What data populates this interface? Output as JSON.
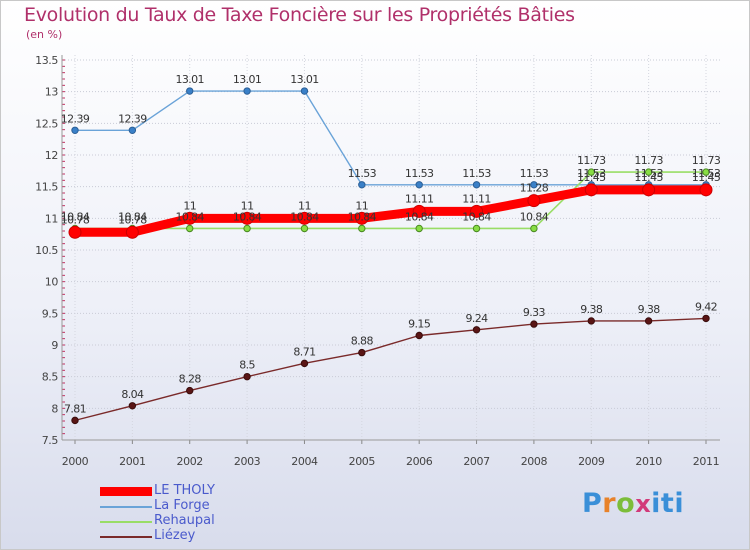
{
  "header": {
    "title": "Evolution du Taux de Taxe Foncière sur les Propriétés Bâties",
    "unit": "(en %)"
  },
  "logo": {
    "text": "Proxiti"
  },
  "chart_data": {
    "type": "line",
    "title": "Evolution du Taux de Taxe Foncière sur les Propriétés Bâties",
    "ylabel": "(en %)",
    "xlabel": "",
    "ylim": [
      7.5,
      13.5
    ],
    "yticks": [
      "7.5",
      "8",
      "8.5",
      "9",
      "9.5",
      "10",
      "10.5",
      "11",
      "11.5",
      "12",
      "12.5",
      "13",
      "13.5"
    ],
    "categories": [
      "2000",
      "2001",
      "2002",
      "2003",
      "2004",
      "2005",
      "2006",
      "2007",
      "2008",
      "2009",
      "2010",
      "2011"
    ],
    "legend_position": "bottom-left",
    "series": [
      {
        "name": "LE THOLY",
        "color": "#ff0000",
        "values": [
          10.78,
          10.78,
          11,
          11,
          11,
          11,
          11.11,
          11.11,
          11.28,
          11.45,
          11.45,
          11.45
        ],
        "labels": [
          "10.78",
          "10.78",
          "11",
          "11",
          "11",
          "11",
          "11.11",
          "11.11",
          "11.28",
          "11.45",
          "11.45",
          "11.45"
        ]
      },
      {
        "name": "La Forge",
        "color": "#6aa3d8",
        "values": [
          12.39,
          12.39,
          13.01,
          13.01,
          13.01,
          11.53,
          11.53,
          11.53,
          11.53,
          11.53,
          11.53,
          11.53
        ],
        "labels": [
          "12.39",
          "12.39",
          "13.01",
          "13.01",
          "13.01",
          "11.53",
          "11.53",
          "11.53",
          "11.53",
          "11.53",
          "11.53",
          "11.53"
        ]
      },
      {
        "name": "Rehaupal",
        "color": "#99dd66",
        "values": [
          10.84,
          10.84,
          10.84,
          10.84,
          10.84,
          10.84,
          10.84,
          10.84,
          10.84,
          11.73,
          11.73,
          11.73
        ],
        "labels": [
          "10.84",
          "10.84",
          "10.84",
          "10.84",
          "10.84",
          "10.84",
          "10.84",
          "10.84",
          "10.84",
          "11.73",
          "11.73",
          "11.73"
        ]
      },
      {
        "name": "Liézey",
        "color": "#7a2a2a",
        "values": [
          7.81,
          8.04,
          8.28,
          8.5,
          8.71,
          8.88,
          9.15,
          9.24,
          9.33,
          9.38,
          9.38,
          9.42
        ],
        "labels": [
          "7.81",
          "8.04",
          "8.28",
          "8.5",
          "8.71",
          "8.88",
          "9.15",
          "9.24",
          "9.33",
          "9.38",
          "9.38",
          "9.42"
        ]
      }
    ]
  }
}
